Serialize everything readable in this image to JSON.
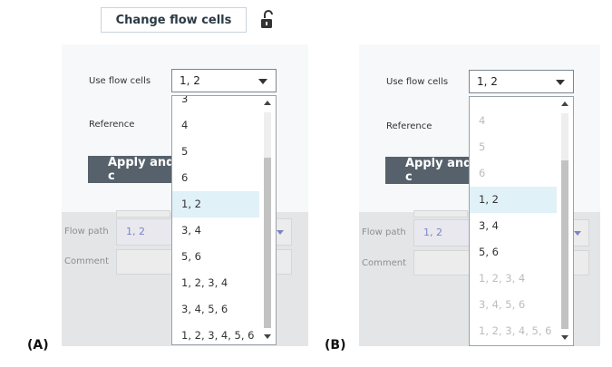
{
  "toolbar": {
    "change_flow_cells_label": "Change flow cells",
    "lock_icon": "unlock-icon"
  },
  "form": {
    "use_flow_cells_label": "Use flow cells",
    "use_flow_cells_value": "1, 2",
    "reference_label": "Reference",
    "apply_label": "Apply and c",
    "flow_path_label": "Flow path",
    "flow_path_value": "1, 2",
    "comment_label": "Comment"
  },
  "dropdown_a": {
    "partial_top": "3",
    "options": [
      "4",
      "5",
      "6",
      "1, 2",
      "3, 4",
      "5, 6",
      "1, 2, 3, 4",
      "3, 4, 5, 6",
      "1, 2, 3, 4, 5, 6"
    ],
    "selected": "1, 2"
  },
  "dropdown_b": {
    "options": [
      "4",
      "5",
      "6",
      "1, 2",
      "3, 4",
      "5, 6",
      "1, 2, 3, 4",
      "3, 4, 5, 6",
      "1, 2, 3, 4, 5, 6"
    ],
    "enabled": [
      "1, 2",
      "3, 4",
      "5, 6"
    ],
    "selected": "1, 2"
  },
  "panel_labels": {
    "a": "(A)",
    "b": "(B)"
  },
  "colors": {
    "selected_bg": "#e0f1f7",
    "apply_bg": "#56616b",
    "disabled_text": "#bcbcbc",
    "flow_value": "#7c83c8"
  }
}
